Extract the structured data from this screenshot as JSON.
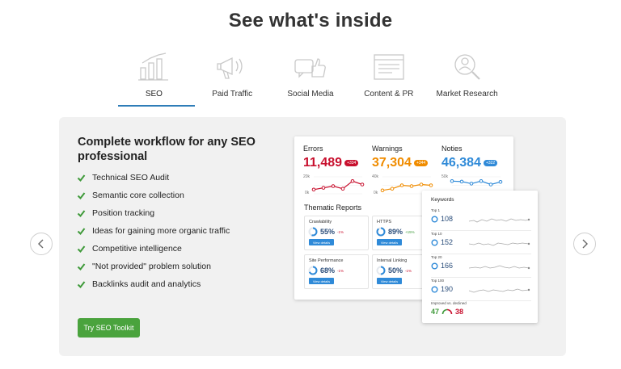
{
  "page": {
    "title": "See what's inside"
  },
  "tabs": [
    {
      "label": "SEO",
      "icon": "bar-chart-icon",
      "active": true
    },
    {
      "label": "Paid Traffic",
      "icon": "megaphone-icon",
      "active": false
    },
    {
      "label": "Social Media",
      "icon": "thumbs-up-chat-icon",
      "active": false
    },
    {
      "label": "Content & PR",
      "icon": "browser-document-icon",
      "active": false
    },
    {
      "label": "Market Research",
      "icon": "magnifier-user-icon",
      "active": false
    }
  ],
  "colors": {
    "accent": "#2f7db8",
    "cta": "#4aa33d",
    "check": "#3f9a3a",
    "errors": "#c8102e",
    "warnings": "#f08c00",
    "notices": "#2f8ad8",
    "panel": "#f1f1f1"
  },
  "panel": {
    "headline": "Complete workflow for any SEO professional",
    "features": [
      "Technical SEO Audit",
      "Semantic core collection",
      "Position tracking",
      "Ideas for gaining more organic traffic",
      "Competitive intelligence",
      "\"Not provided\" problem solution",
      "Backlinks audit and analytics"
    ],
    "cta_label": "Try SEO Toolkit"
  },
  "dashboard": {
    "metrics": [
      {
        "label": "Errors",
        "value": "11,489",
        "badge": "+334",
        "axis_top": "20k",
        "axis_bottom": "0k",
        "trend": [
          0.25,
          0.35,
          0.45,
          0.3,
          0.75,
          0.55
        ]
      },
      {
        "label": "Warnings",
        "value": "37,304",
        "badge": "+344",
        "axis_top": "40k",
        "axis_bottom": "0k",
        "trend": [
          0.2,
          0.3,
          0.5,
          0.45,
          0.55,
          0.5
        ]
      },
      {
        "label": "Noties",
        "value": "46,384",
        "badge": "+322",
        "axis_top": "50k",
        "axis_bottom": "0k",
        "trend": [
          0.75,
          0.72,
          0.6,
          0.75,
          0.55,
          0.7
        ]
      }
    ],
    "thematic_title": "Thematic Reports",
    "reports": [
      {
        "label": "Crawlability",
        "pct": "55%",
        "delta": "-1%",
        "delta_color": "#c8102e",
        "button": "View details",
        "ratio": 0.55
      },
      {
        "label": "HTTPS",
        "pct": "89%",
        "delta": "+15%",
        "delta_color": "#3f9a3a",
        "button": "View details",
        "ratio": 0.89
      },
      {
        "label": "Site Performance",
        "pct": "68%",
        "delta": "-1%",
        "delta_color": "#c8102e",
        "button": "View details",
        "ratio": 0.68
      },
      {
        "label": "Internal Linking",
        "pct": "50%",
        "delta": "-1%",
        "delta_color": "#c8102e",
        "button": "View details",
        "ratio": 0.5
      }
    ]
  },
  "keywords": {
    "title": "Keywords",
    "rows": [
      {
        "label": "Top 1",
        "value": "108"
      },
      {
        "label": "Top 10",
        "value": "152"
      },
      {
        "label": "Top 20",
        "value": "166"
      },
      {
        "label": "Top 100",
        "value": "190"
      }
    ],
    "footer_label": "Improved vs. declined",
    "improved": "47",
    "declined": "38"
  }
}
